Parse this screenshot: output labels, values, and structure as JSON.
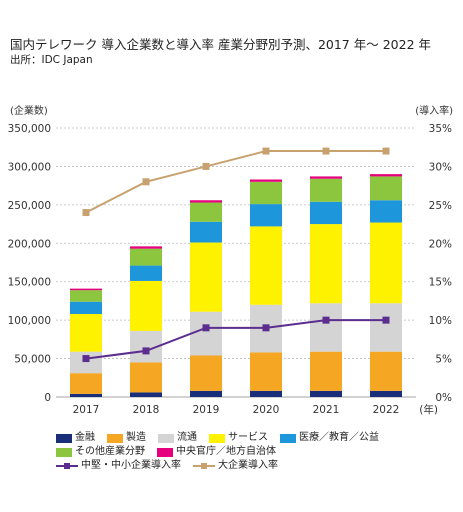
{
  "title": "国内テレワーク 導入企業数と導入率 産業分野別予測、2017 年〜 2022 年",
  "source": "出所：IDC Japan",
  "chart_data": {
    "type": "bar",
    "stacked": true,
    "categories": [
      "2017",
      "2018",
      "2019",
      "2020",
      "2021",
      "2022"
    ],
    "x_unit": "(年)",
    "ylabel": "(企業数)",
    "ylabel_right": "(導入率)",
    "ylim": [
      0,
      350000
    ],
    "ylim_right": [
      0,
      35
    ],
    "yticks": [
      "0",
      "50,000",
      "100,000",
      "150,000",
      "200,000",
      "250,000",
      "300,000",
      "350,000"
    ],
    "yticks_right": [
      "0%",
      "5%",
      "10%",
      "15%",
      "20%",
      "25%",
      "30%",
      "35%"
    ],
    "grid": true,
    "legend_position": "bottom",
    "series": [
      {
        "name": "金融",
        "color": "#1a2f7a",
        "values": [
          4000,
          6000,
          8000,
          8000,
          8000,
          8000
        ]
      },
      {
        "name": "製造",
        "color": "#f5a623",
        "values": [
          27000,
          39000,
          46000,
          50000,
          51000,
          51000
        ]
      },
      {
        "name": "流通",
        "color": "#d4d4d4",
        "values": [
          28000,
          41000,
          57000,
          62000,
          63000,
          63000
        ]
      },
      {
        "name": "サービス",
        "color": "#fff200",
        "values": [
          49000,
          65000,
          90000,
          102000,
          103000,
          105000
        ]
      },
      {
        "name": "医療／教育／公益",
        "color": "#1e96dc",
        "values": [
          16000,
          20000,
          27000,
          29000,
          29000,
          29000
        ]
      },
      {
        "name": "その他産業分野",
        "color": "#8cc63e",
        "values": [
          15000,
          22000,
          25000,
          29000,
          30000,
          31000
        ]
      },
      {
        "name": "中央官庁／地方自治体",
        "color": "#e6007e",
        "values": [
          2000,
          3000,
          3000,
          3000,
          3000,
          3000
        ]
      }
    ],
    "lines": [
      {
        "name": "中堅・中小企業導入率",
        "color": "#5b2d8e",
        "axis": "right",
        "values": [
          5,
          6,
          9,
          9,
          10,
          10
        ]
      },
      {
        "name": "大企業導入率",
        "color": "#c8a26e",
        "axis": "right",
        "values": [
          24,
          28,
          30,
          32,
          32,
          32
        ]
      }
    ]
  }
}
